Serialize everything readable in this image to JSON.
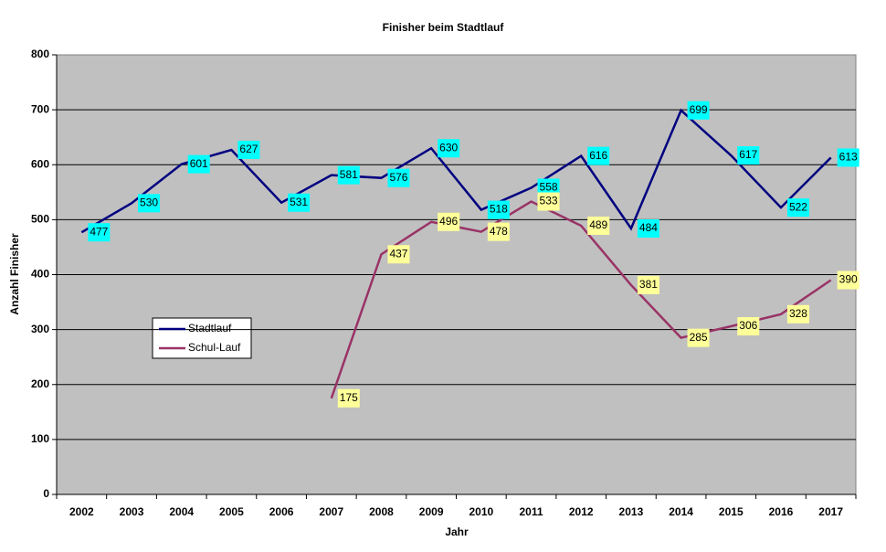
{
  "chart_data": {
    "type": "line",
    "title": "Finisher beim Stadtlauf",
    "x_label": "Jahr",
    "y_label": "Anzahl Finisher",
    "categories": [
      "2002",
      "2003",
      "2004",
      "2005",
      "2006",
      "2007",
      "2008",
      "2009",
      "2010",
      "2011",
      "2012",
      "2013",
      "2014",
      "2015",
      "2016",
      "2017"
    ],
    "series": [
      {
        "name": "Stadtlauf",
        "color": "#000080",
        "label_color": "#00ffff",
        "values": [
          477,
          530,
          601,
          627,
          531,
          581,
          576,
          630,
          518,
          558,
          616,
          484,
          699,
          617,
          522,
          613
        ]
      },
      {
        "name": "Schul-Lauf",
        "color": "#993366",
        "label_color": "#ffff99",
        "values": [
          null,
          null,
          null,
          null,
          null,
          175,
          437,
          496,
          478,
          533,
          489,
          381,
          285,
          306,
          328,
          390
        ]
      }
    ],
    "ylim": [
      0,
      800
    ],
    "yticks": [
      0,
      100,
      200,
      300,
      400,
      500,
      600,
      700,
      800
    ],
    "grid": true,
    "plot_background": "#c0c0c0"
  }
}
